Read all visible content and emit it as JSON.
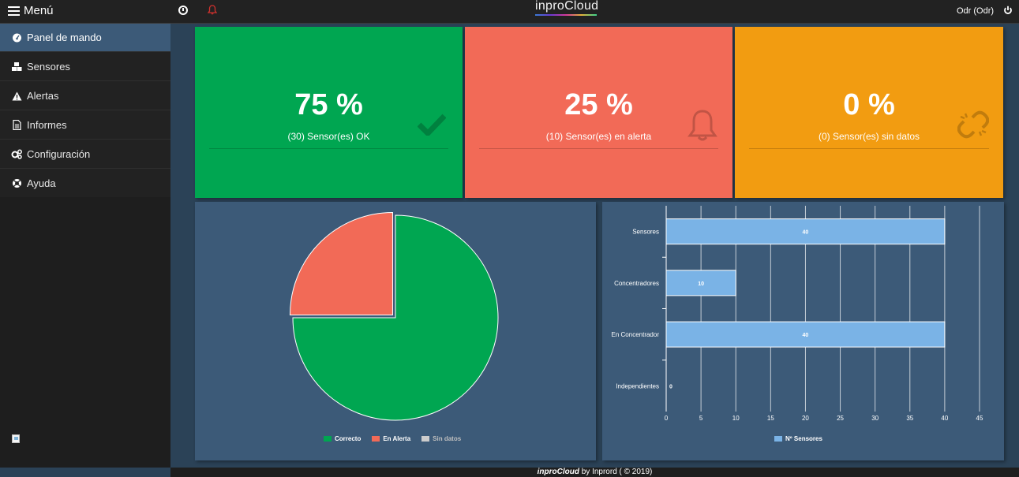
{
  "header": {
    "menu_label": "Menú",
    "brand": "inproCloud",
    "user": "Odr (Odr)"
  },
  "icons": {
    "menu": "hamburger-icon",
    "clock": "clock-icon",
    "alerts": "bell-icon",
    "power": "power-icon"
  },
  "sidebar": {
    "items": [
      {
        "label": "Panel de mando",
        "icon": "dashboard-icon",
        "active": true
      },
      {
        "label": "Sensores",
        "icon": "cubes-icon",
        "active": false
      },
      {
        "label": "Alertas",
        "icon": "warning-icon",
        "active": false
      },
      {
        "label": "Informes",
        "icon": "document-icon",
        "active": false
      },
      {
        "label": "Configuración",
        "icon": "gears-icon",
        "active": false
      },
      {
        "label": "Ayuda",
        "icon": "lifebuoy-icon",
        "active": false
      }
    ]
  },
  "cards": [
    {
      "value": "75 %",
      "label": "(30) Sensor(es) OK",
      "color": "#00a651",
      "icon": "check-icon"
    },
    {
      "value": "25 %",
      "label": "(10) Sensor(es) en alerta",
      "color": "#f26a57",
      "icon": "bell-icon"
    },
    {
      "value": "0 %",
      "label": "(0) Sensor(es) sin datos",
      "color": "#f29c11",
      "icon": "unlink-icon"
    }
  ],
  "chart_data": [
    {
      "type": "pie",
      "categories": [
        "Correcto",
        "En Alerta",
        "Sin datos"
      ],
      "values": [
        75,
        25,
        0
      ],
      "colors": [
        "#00a651",
        "#f26a57",
        "#cccccc"
      ],
      "legend": "bottom"
    },
    {
      "type": "bar",
      "orientation": "horizontal",
      "categories": [
        "Sensores",
        "Concentradores",
        "En Concentrador",
        "Independientes"
      ],
      "series": [
        {
          "name": "Nº Sensores",
          "values": [
            40,
            10,
            40,
            0
          ]
        }
      ],
      "xticks": [
        0,
        5,
        10,
        15,
        20,
        25,
        30,
        35,
        40,
        45
      ],
      "xlim": [
        0,
        45
      ],
      "color": "#7ab3e6",
      "grid": true,
      "legend": "bottom"
    }
  ],
  "footer": {
    "brand": "inproCloud",
    "text": " by Inprord ( © 2019)"
  }
}
